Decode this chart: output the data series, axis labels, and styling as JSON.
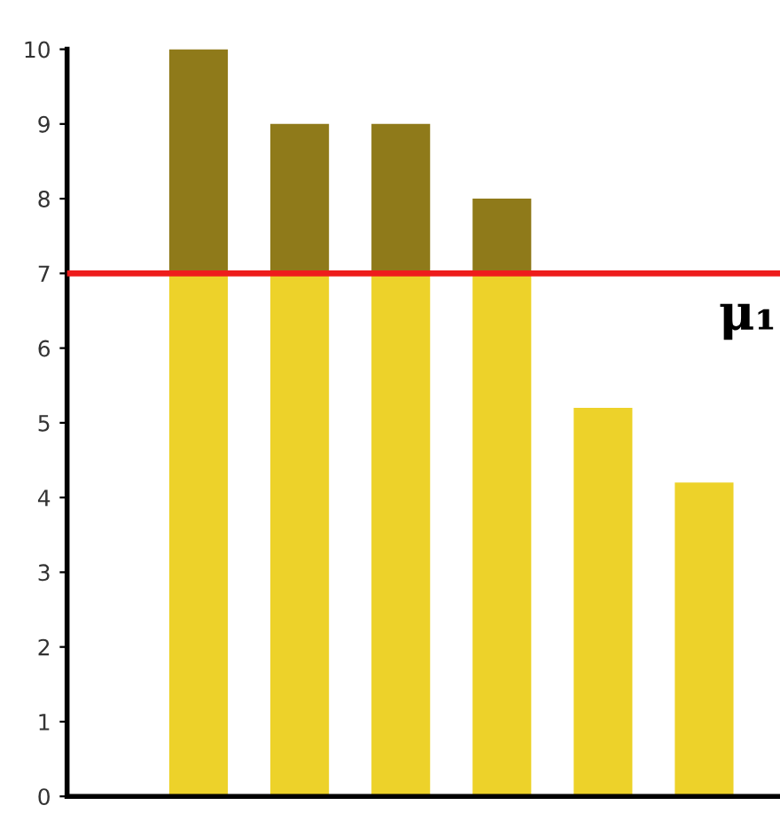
{
  "chart_data": {
    "type": "bar",
    "stacked": true,
    "categories": [
      null,
      null,
      null,
      null,
      null,
      null
    ],
    "series": [
      {
        "color": "#edd22a",
        "values": [
          7,
          7,
          7,
          7,
          5.2,
          4.2
        ]
      },
      {
        "color": "#8f7a1a",
        "values": [
          3,
          2,
          2,
          1,
          null,
          null
        ]
      }
    ],
    "ylim": [
      0,
      10
    ],
    "yticks": [
      0,
      1,
      2,
      3,
      4,
      5,
      6,
      7,
      8,
      9,
      10
    ],
    "grid": false,
    "legend": false,
    "ref_lines": [
      {
        "axis": "y",
        "value": 7,
        "label": "μ₁",
        "color": "#ee1c1c",
        "line_style": "solid"
      }
    ]
  }
}
